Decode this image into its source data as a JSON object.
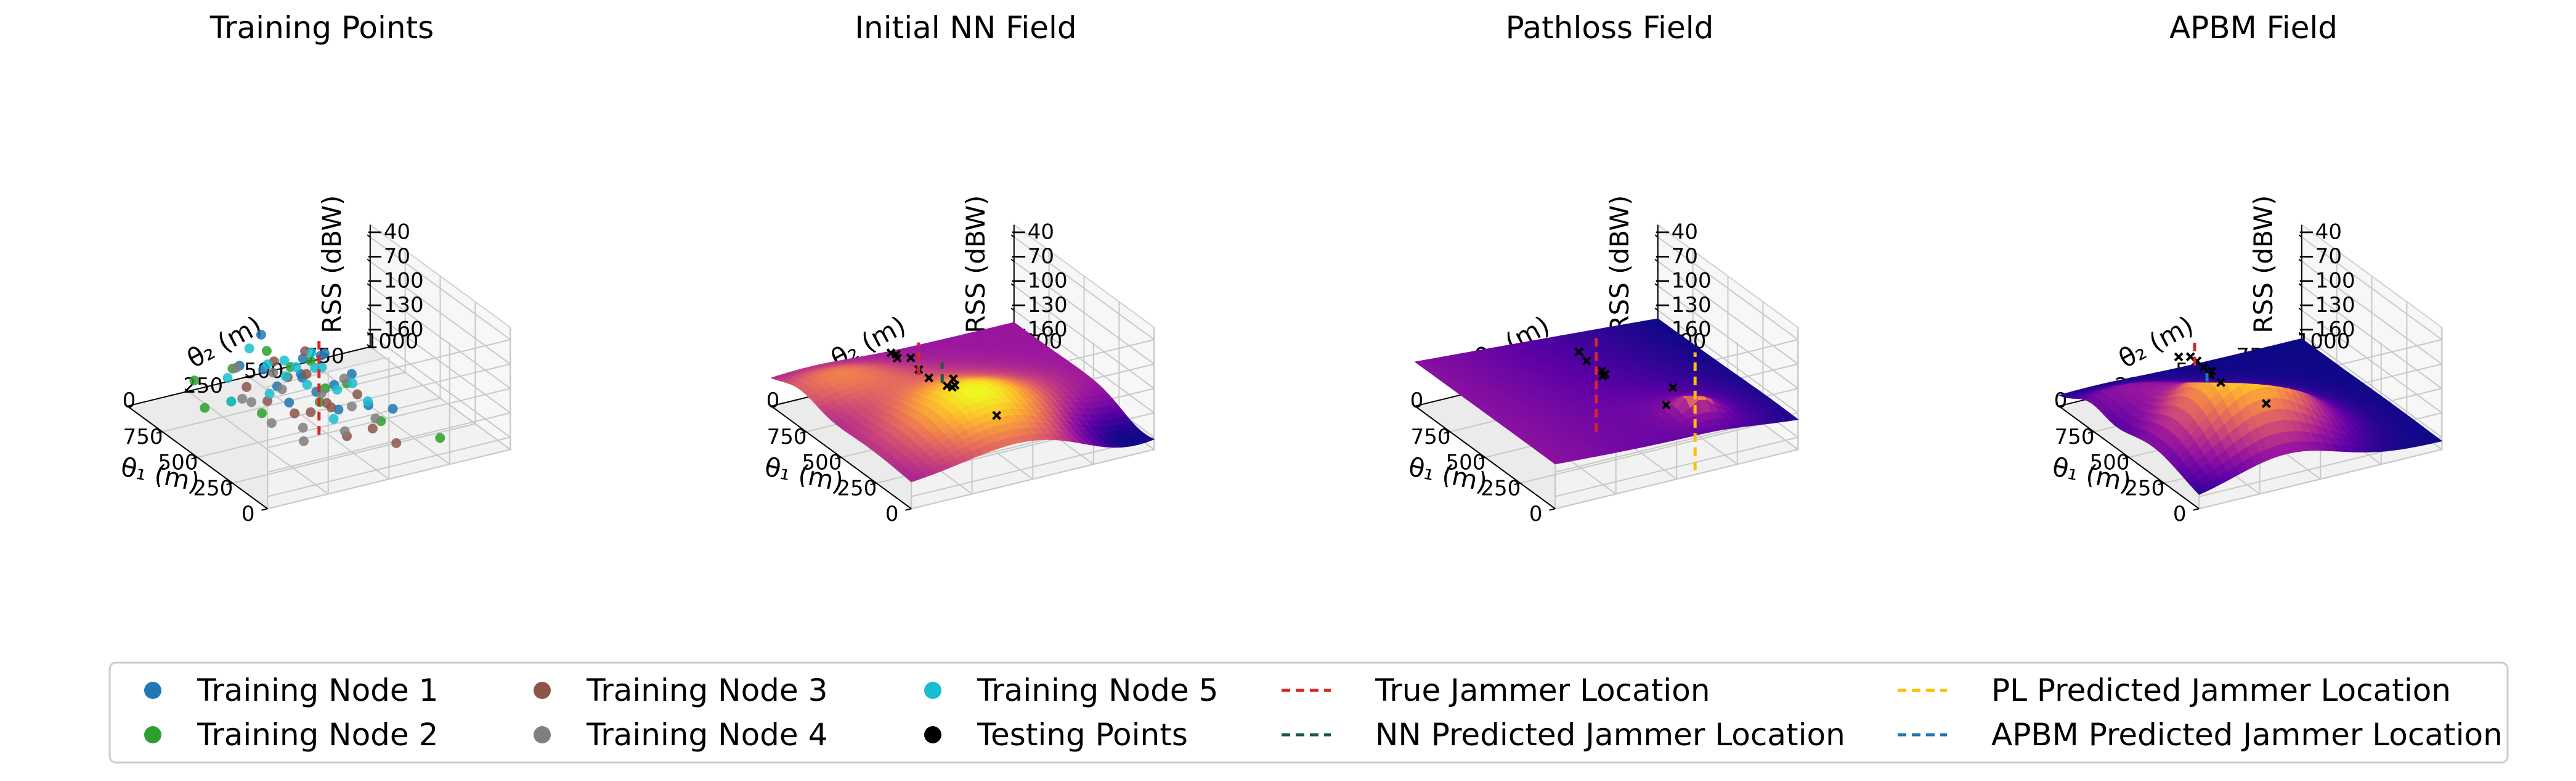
{
  "legend": [
    {
      "label": "Training Node 1",
      "kind": "dot",
      "color": "#1f77b4"
    },
    {
      "label": "Training Node 2",
      "kind": "dot",
      "color": "#2ca02c"
    },
    {
      "label": "Training Node 3",
      "kind": "dot",
      "color": "#8c564b"
    },
    {
      "label": "Training Node 4",
      "kind": "dot",
      "color": "#7f7f7f"
    },
    {
      "label": "Training Node 5",
      "kind": "dot",
      "color": "#17becf"
    },
    {
      "label": "Testing Points",
      "kind": "dot",
      "color": "#000000"
    },
    {
      "label": "True Jammer Location",
      "kind": "dash",
      "color": "#d62728"
    },
    {
      "label": "NN Predicted Jammer Location",
      "kind": "dash",
      "color": "#1a5a46"
    },
    {
      "label": "PL Predicted Jammer Location",
      "kind": "dash",
      "color": "#ffbf00"
    },
    {
      "label": "APBM Predicted Jammer Location",
      "kind": "dash",
      "color": "#1f77b4"
    }
  ],
  "colors": {
    "colormap": [
      "#0d0887",
      "#5c01a6",
      "#9c179e",
      "#cc4778",
      "#ed7953",
      "#fdb42f",
      "#f0f921"
    ]
  },
  "chart_data": [
    {
      "type": "scatter",
      "title": "Training Points",
      "xlabel": "θ₁ (m)",
      "ylabel": "θ₂ (m)",
      "zlabel": "RSS (dBW)",
      "xticks": [
        "750",
        "500",
        "250",
        "0"
      ],
      "yticks": [
        "0",
        "250",
        "500",
        "750",
        "1000"
      ],
      "zticks": [
        "−40",
        "−70",
        "−100",
        "−130",
        "−160"
      ],
      "xlim": [
        0,
        1000
      ],
      "ylim": [
        0,
        1000
      ],
      "zlim": [
        -175,
        -25
      ],
      "show_zlabel": true,
      "jammer_lines": [
        {
          "series": "True Jammer Location",
          "color": "#d62728",
          "x": 360,
          "y": 420,
          "z": [
            -160,
            -40
          ]
        }
      ],
      "series": [
        {
          "name": "Training Node 1",
          "color": "#1f77b4",
          "points": [
            [
              440,
              400,
              -75
            ],
            [
              420,
              380,
              -90
            ],
            [
              520,
              340,
              -115
            ],
            [
              380,
              420,
              -110
            ],
            [
              600,
              320,
              -60
            ],
            [
              340,
              470,
              -100
            ],
            [
              300,
              520,
              -85
            ],
            [
              470,
              360,
              -130
            ],
            [
              550,
              300,
              -95
            ],
            [
              250,
              560,
              -120
            ],
            [
              650,
              260,
              -100
            ],
            [
              400,
              450,
              -70
            ],
            [
              360,
              500,
              -135
            ],
            [
              180,
              620,
              -120
            ],
            [
              480,
              420,
              -105
            ],
            [
              320,
              420,
              -55
            ]
          ]
        },
        {
          "name": "Training Node 2",
          "color": "#2ca02c",
          "points": [
            [
              700,
              260,
              -110
            ],
            [
              640,
              220,
              -140
            ],
            [
              560,
              300,
              -150
            ],
            [
              460,
              360,
              -85
            ],
            [
              760,
              180,
              -160
            ],
            [
              390,
              440,
              -125
            ],
            [
              300,
              500,
              -95
            ],
            [
              230,
              600,
              -140
            ],
            [
              120,
              780,
              -160
            ],
            [
              560,
              320,
              -75
            ],
            [
              800,
              160,
              -130
            ],
            [
              420,
              480,
              -115
            ],
            [
              350,
              380,
              -65
            ]
          ]
        },
        {
          "name": "Training Node 3",
          "color": "#8c564b",
          "points": [
            [
              520,
              300,
              -130
            ],
            [
              480,
              360,
              -100
            ],
            [
              420,
              420,
              -140
            ],
            [
              380,
              380,
              -85
            ],
            [
              340,
              440,
              -120
            ],
            [
              300,
              500,
              -160
            ],
            [
              600,
              260,
              -120
            ],
            [
              260,
              520,
              -105
            ],
            [
              220,
              560,
              -145
            ],
            [
              460,
              420,
              -70
            ],
            [
              500,
              400,
              -150
            ],
            [
              360,
              470,
              -130
            ],
            [
              190,
              640,
              -165
            ],
            [
              560,
              350,
              -90
            ]
          ]
        },
        {
          "name": "Training Node 4",
          "color": "#7f7f7f",
          "points": [
            [
              600,
              280,
              -140
            ],
            [
              520,
              360,
              -120
            ],
            [
              440,
              400,
              -160
            ],
            [
              360,
              430,
              -110
            ],
            [
              280,
              480,
              -150
            ],
            [
              200,
              560,
              -130
            ],
            [
              640,
              240,
              -100
            ],
            [
              480,
              300,
              -90
            ],
            [
              400,
              380,
              -170
            ],
            [
              300,
              520,
              -125
            ],
            [
              250,
              460,
              -80
            ],
            [
              560,
              340,
              -165
            ],
            [
              700,
              300,
              -150
            ]
          ]
        },
        {
          "name": "Training Node 5",
          "color": "#17becf",
          "points": [
            [
              580,
              260,
              -70
            ],
            [
              520,
              300,
              -85
            ],
            [
              460,
              340,
              -95
            ],
            [
              420,
              360,
              -80
            ],
            [
              380,
              400,
              -60
            ],
            [
              340,
              420,
              -75
            ],
            [
              300,
              460,
              -100
            ],
            [
              260,
              500,
              -90
            ],
            [
              220,
              540,
              -110
            ],
            [
              640,
              220,
              -140
            ],
            [
              400,
              300,
              -65
            ],
            [
              480,
              440,
              -115
            ],
            [
              360,
              480,
              -145
            ],
            [
              320,
              380,
              -70
            ],
            [
              540,
              320,
              -125
            ],
            [
              700,
              240,
              -120
            ]
          ]
        }
      ]
    },
    {
      "type": "surface",
      "title": "Initial NN Field",
      "xlabel": "θ₁ (m)",
      "ylabel": "θ₂ (m)",
      "zlabel": "RSS (dBW)",
      "xticks": [
        "750",
        "500",
        "250",
        "0"
      ],
      "yticks": [
        "0",
        "250",
        "500",
        "750",
        "1000"
      ],
      "zticks": [
        "−40",
        "−70",
        "−100",
        "−130",
        "−160"
      ],
      "xlim": [
        0,
        1000
      ],
      "ylim": [
        0,
        1000
      ],
      "zlim": [
        -175,
        -25
      ],
      "show_zlabel": true,
      "field": {
        "kind": "nn",
        "peak_x": 300,
        "peak_y": 450,
        "peak_rss": -95,
        "floor_rss": -175
      },
      "jammer_lines": [
        {
          "series": "True Jammer Location",
          "color": "#d62728",
          "x": 400,
          "y": 260,
          "z": [
            -80,
            -40
          ]
        },
        {
          "series": "NN Predicted Jammer Location",
          "color": "#1a5a46",
          "x": 300,
          "y": 300,
          "z": [
            -80,
            -55
          ]
        }
      ],
      "test_points": [
        [
          420,
          240,
          -60
        ],
        [
          380,
          250,
          -70
        ],
        [
          360,
          280,
          -80
        ],
        [
          300,
          320,
          -85
        ],
        [
          280,
          330,
          -85
        ],
        [
          260,
          330,
          -80
        ],
        [
          220,
          300,
          -65
        ],
        [
          700,
          320,
          -95
        ],
        [
          680,
          330,
          -95
        ],
        [
          620,
          300,
          -90
        ],
        [
          500,
          640,
          -170
        ]
      ]
    },
    {
      "type": "surface",
      "title": "Pathloss Field",
      "xlabel": "θ₁ (m)",
      "ylabel": "θ₂ (m)",
      "zlabel": "RSS (dBW)",
      "xticks": [
        "750",
        "500",
        "250",
        "0"
      ],
      "yticks": [
        "0",
        "250",
        "500",
        "750",
        "1000"
      ],
      "zticks": [
        "−40",
        "−70",
        "−100",
        "−130",
        "−160"
      ],
      "xlim": [
        0,
        1000
      ],
      "ylim": [
        0,
        1000
      ],
      "zlim": [
        -175,
        -25
      ],
      "show_zlabel": true,
      "field": {
        "kind": "pathloss",
        "peak_x": 180,
        "peak_y": 680,
        "peak_rss": -70,
        "floor_rss": -140
      },
      "jammer_lines": [
        {
          "series": "True Jammer Location",
          "color": "#d62728",
          "x": 400,
          "y": 400,
          "z": [
            -160,
            -40
          ]
        },
        {
          "series": "PL Predicted Jammer Location",
          "color": "#ffbf00",
          "x": 180,
          "y": 680,
          "z": [
            -200,
            -55
          ]
        }
      ],
      "test_points": [
        [
          420,
          340,
          -60
        ],
        [
          400,
          360,
          -70
        ],
        [
          360,
          400,
          -80
        ],
        [
          320,
          380,
          -80
        ],
        [
          300,
          380,
          -75
        ],
        [
          240,
          340,
          -65
        ],
        [
          200,
          600,
          -95
        ],
        [
          560,
          780,
          -175
        ]
      ]
    },
    {
      "type": "surface",
      "title": "APBM Field",
      "xlabel": "θ₁ (m)",
      "ylabel": "θ₂ (m)",
      "zlabel": "RSS (dBW)",
      "xticks": [
        "750",
        "500",
        "250",
        "0"
      ],
      "yticks": [
        "0",
        "250",
        "500",
        "750",
        "1000"
      ],
      "zticks": [
        "−40",
        "−70",
        "−100",
        "−130",
        "−160"
      ],
      "xlim": [
        0,
        1000
      ],
      "ylim": [
        0,
        1000
      ],
      "zlim": [
        -175,
        -25
      ],
      "show_zlabel": true,
      "field": {
        "kind": "apbm",
        "peak_x": 330,
        "peak_y": 360,
        "peak_rss": -70,
        "floor_rss": -175
      },
      "jammer_lines": [
        {
          "series": "True Jammer Location",
          "color": "#d62728",
          "x": 430,
          "y": 230,
          "z": [
            -70,
            -40
          ]
        },
        {
          "series": "APBM Predicted Jammer Location",
          "color": "#1f77b4",
          "x": 290,
          "y": 200,
          "z": [
            -70,
            -55
          ]
        }
      ],
      "test_points": [
        [
          430,
          240,
          -65
        ],
        [
          400,
          250,
          -70
        ],
        [
          360,
          260,
          -70
        ],
        [
          300,
          220,
          -65
        ],
        [
          260,
          240,
          -70
        ],
        [
          700,
          320,
          -100
        ],
        [
          650,
          340,
          -95
        ],
        [
          560,
          600,
          -160
        ]
      ]
    }
  ]
}
